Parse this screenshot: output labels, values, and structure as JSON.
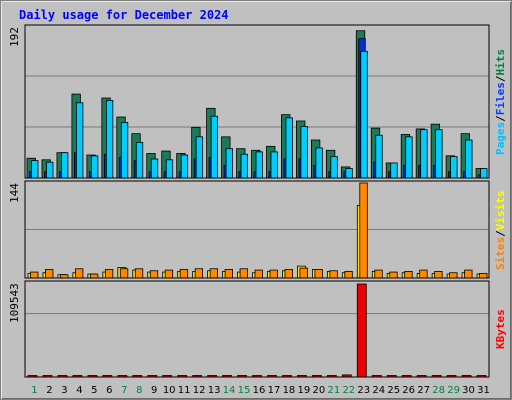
{
  "title": "Daily usage for December 2024",
  "legend": {
    "top": [
      {
        "text": "Pages",
        "color": "#00c0ff"
      },
      {
        "text": "/",
        "color": "#000000"
      },
      {
        "text": "Files",
        "color": "#0040ff"
      },
      {
        "text": "/",
        "color": "#000000"
      },
      {
        "text": "Hits",
        "color": "#008040"
      }
    ],
    "middle": [
      {
        "text": "Sites",
        "color": "#ff8000"
      },
      {
        "text": "/",
        "color": "#000000"
      },
      {
        "text": "Visits",
        "color": "#ffff00"
      }
    ],
    "bottom": [
      {
        "text": "KBytes",
        "color": "#ff0000"
      }
    ]
  },
  "chart_data": {
    "type": "bar",
    "categories": [
      "1",
      "2",
      "3",
      "4",
      "5",
      "6",
      "7",
      "8",
      "9",
      "10",
      "11",
      "12",
      "13",
      "14",
      "15",
      "16",
      "17",
      "18",
      "19",
      "20",
      "21",
      "22",
      "23",
      "24",
      "25",
      "26",
      "27",
      "28",
      "29",
      "30",
      "31"
    ],
    "weekend_color": "#008040",
    "weekend_days": [
      1,
      7,
      8,
      14,
      15,
      21,
      22,
      28,
      29
    ],
    "panels": [
      {
        "name": "top",
        "ymax_label": "192",
        "ylim": [
          0,
          192
        ],
        "series": [
          {
            "name": "Hits",
            "color": "#1a7a5a",
            "values": [
              25,
              23,
              32,
              106,
              29,
              101,
              77,
              56,
              31,
              34,
              31,
              64,
              88,
              52,
              37,
              35,
              40,
              80,
              72,
              48,
              35,
              14,
              186,
              63,
              19,
              55,
              62,
              68,
              28,
              56,
              12
            ]
          },
          {
            "name": "Files",
            "color": "#0030d0",
            "values": [
              8,
              8,
              8,
              32,
              8,
              30,
              26,
              22,
              8,
              8,
              8,
              24,
              26,
              16,
              8,
              8,
              8,
              24,
              24,
              16,
              8,
              8,
              176,
              20,
              8,
              16,
              16,
              16,
              8,
              8,
              4
            ]
          },
          {
            "name": "Pages",
            "color": "#00ccff",
            "values": [
              22,
              20,
              32,
              95,
              28,
              98,
              70,
              45,
              24,
              23,
              29,
              52,
              78,
              37,
              30,
              33,
              33,
              76,
              65,
              38,
              27,
              12,
              160,
              54,
              19,
              52,
              61,
              61,
              27,
              48,
              12
            ]
          }
        ]
      },
      {
        "name": "middle",
        "ymax_label": "144",
        "ylim": [
          0,
          144
        ],
        "series": [
          {
            "name": "Sites",
            "color": "#ff8800",
            "values": [
              9,
              13,
              5,
              14,
              6,
              13,
              14,
              14,
              11,
              12,
              13,
              14,
              14,
              13,
              14,
              12,
              12,
              13,
              15,
              13,
              11,
              10,
              144,
              12,
              9,
              10,
              12,
              10,
              8,
              12,
              7
            ]
          },
          {
            "name": "Visits",
            "color": "#ffdd00",
            "values": [
              7,
              8,
              5,
              8,
              6,
              9,
              16,
              12,
              9,
              9,
              10,
              10,
              11,
              10,
              9,
              8,
              10,
              11,
              18,
              13,
              10,
              8,
              110,
              10,
              7,
              8,
              7,
              7,
              6,
              8,
              6
            ]
          }
        ]
      },
      {
        "name": "bottom",
        "ymax_label": "109543",
        "ylim": [
          0,
          109543
        ],
        "series": [
          {
            "name": "KBytes",
            "color": "#ee0000",
            "values": [
              900,
              900,
              900,
              900,
              900,
              900,
              900,
              900,
              900,
              900,
              900,
              900,
              900,
              900,
              900,
              900,
              900,
              900,
              900,
              900,
              900,
              2500,
              109543,
              900,
              900,
              900,
              900,
              900,
              900,
              900,
              900
            ]
          }
        ]
      }
    ]
  }
}
